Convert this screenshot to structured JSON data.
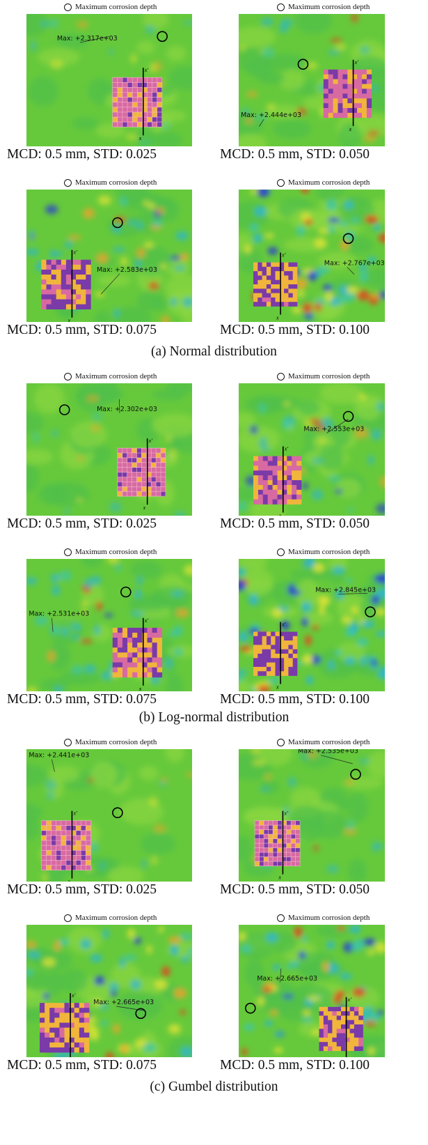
{
  "legend_label": "Maximum corrosion depth",
  "sections": [
    {
      "caption": "(a) Normal distribution",
      "panels": [
        {
          "caption": "MCD: 0.5 mm, STD: 0.025",
          "max_label": "Max: +2.317e+03",
          "intensity": 0.15,
          "seed": 11
        },
        {
          "caption": "MCD: 0.5 mm, STD: 0.050",
          "max_label": "Max: +2.444e+03",
          "intensity": 0.35,
          "seed": 23
        },
        {
          "caption": "MCD: 0.5 mm, STD: 0.075",
          "max_label": "Max: +2.583e+03",
          "intensity": 0.65,
          "seed": 37
        },
        {
          "caption": "MCD: 0.5 mm, STD: 0.100",
          "max_label": "Max: +2.767e+03",
          "intensity": 0.9,
          "seed": 41
        }
      ]
    },
    {
      "caption": "(b) Log-normal distribution",
      "panels": [
        {
          "caption": "MCD: 0.5 mm, STD: 0.025",
          "max_label": "Max: +2.302e+03",
          "intensity": 0.12,
          "seed": 53
        },
        {
          "caption": "MCD: 0.5 mm, STD: 0.050",
          "max_label": "Max: +2.553e+03",
          "intensity": 0.45,
          "seed": 61
        },
        {
          "caption": "MCD: 0.5 mm, STD: 0.075",
          "max_label": "Max: +2.531e+03",
          "intensity": 0.6,
          "seed": 79
        },
        {
          "caption": "MCD: 0.5 mm, STD: 0.100",
          "max_label": "Max: +2.845e+03",
          "intensity": 1.0,
          "seed": 83
        }
      ]
    },
    {
      "caption": "(c) Gumbel distribution",
      "panels": [
        {
          "caption": "MCD: 0.5 mm, STD: 0.025",
          "max_label": "Max: +2.441e+03",
          "intensity": 0.12,
          "seed": 97
        },
        {
          "caption": "MCD: 0.5 mm, STD: 0.050",
          "max_label": "Max: +2.535e+03",
          "intensity": 0.2,
          "seed": 101
        },
        {
          "caption": "MCD: 0.5 mm, STD: 0.075",
          "max_label": "Max: +2.665e+03",
          "intensity": 0.8,
          "seed": 113
        },
        {
          "caption": "MCD: 0.5 mm, STD: 0.100",
          "max_label": "Max: +2.665e+03",
          "intensity": 0.85,
          "seed": 127
        }
      ]
    }
  ],
  "axis_labels": {
    "x_top": "x'",
    "x_bottom": "x"
  }
}
